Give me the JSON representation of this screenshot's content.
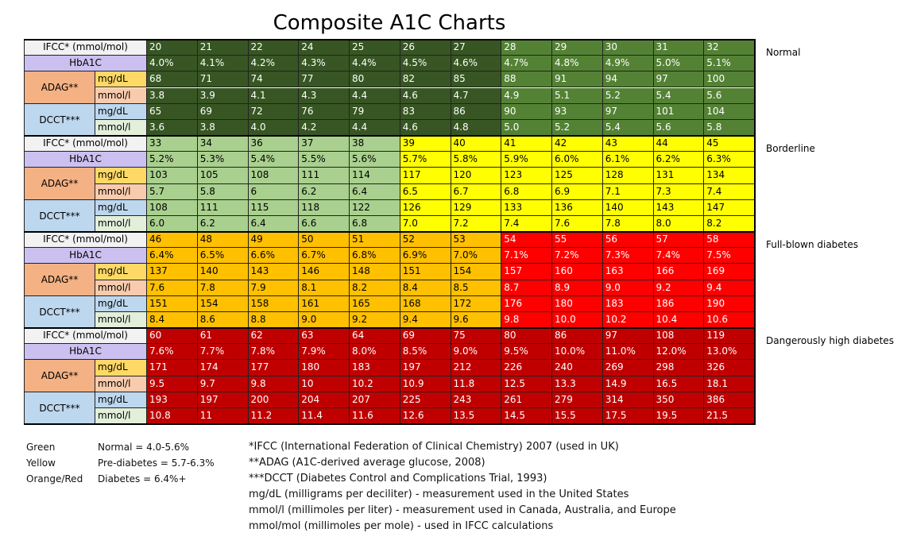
{
  "title": "Composite A1C Charts",
  "row_labels": {
    "ifcc": "IFCC* (mmol/mol)",
    "hba1c": "HbA1C",
    "adag": "ADAG**",
    "dcct": "DCCT***",
    "mgdl": "mg/dL",
    "mmoll": "mmol/l"
  },
  "table": {
    "blocks": [
      {
        "label": "Normal",
        "colors": [
          "#375623",
          "#375623",
          "#375623",
          "#375623",
          "#375623",
          "#375623",
          "#375623",
          "#548235",
          "#548235",
          "#548235",
          "#548235",
          "#548235"
        ],
        "rows": [
          [
            "20",
            "21",
            "22",
            "24",
            "25",
            "26",
            "27",
            "28",
            "29",
            "30",
            "31",
            "32"
          ],
          [
            "4.0%",
            "4.1%",
            "4.2%",
            "4.3%",
            "4.4%",
            "4.5%",
            "4.6%",
            "4.7%",
            "4.8%",
            "4.9%",
            "5.0%",
            "5.1%"
          ],
          [
            "68",
            "71",
            "74",
            "77",
            "80",
            "82",
            "85",
            "88",
            "91",
            "94",
            "97",
            "100"
          ],
          [
            "3.8",
            "3.9",
            "4.1",
            "4.3",
            "4.4",
            "4.6",
            "4.7",
            "4.9",
            "5.1",
            "5.2",
            "5.4",
            "5.6"
          ],
          [
            "65",
            "69",
            "72",
            "76",
            "79",
            "83",
            "86",
            "90",
            "93",
            "97",
            "101",
            "104"
          ],
          [
            "3.6",
            "3.8",
            "4.0",
            "4.2",
            "4.4",
            "4.6",
            "4.8",
            "5.0",
            "5.2",
            "5.4",
            "5.6",
            "5.8"
          ]
        ]
      },
      {
        "label": "Borderline",
        "colors": [
          "#a9d08e",
          "#a9d08e",
          "#a9d08e",
          "#a9d08e",
          "#a9d08e",
          "#ffff00",
          "#ffff00",
          "#ffff00",
          "#ffff00",
          "#ffff00",
          "#ffff00",
          "#ffff00"
        ],
        "rows": [
          [
            "33",
            "34",
            "36",
            "37",
            "38",
            "39",
            "40",
            "41",
            "42",
            "43",
            "44",
            "45"
          ],
          [
            "5.2%",
            "5.3%",
            "5.4%",
            "5.5%",
            "5.6%",
            "5.7%",
            "5.8%",
            "5.9%",
            "6.0%",
            "6.1%",
            "6.2%",
            "6.3%"
          ],
          [
            "103",
            "105",
            "108",
            "111",
            "114",
            "117",
            "120",
            "123",
            "125",
            "128",
            "131",
            "134"
          ],
          [
            "5.7",
            "5.8",
            "6",
            "6.2",
            "6.4",
            "6.5",
            "6.7",
            "6.8",
            "6.9",
            "7.1",
            "7.3",
            "7.4"
          ],
          [
            "108",
            "111",
            "115",
            "118",
            "122",
            "126",
            "129",
            "133",
            "136",
            "140",
            "143",
            "147"
          ],
          [
            "6.0",
            "6.2",
            "6.4",
            "6.6",
            "6.8",
            "7.0",
            "7.2",
            "7.4",
            "7.6",
            "7.8",
            "8.0",
            "8.2"
          ]
        ]
      },
      {
        "label": "Full-blown diabetes",
        "colors": [
          "#ffc000",
          "#ffc000",
          "#ffc000",
          "#ffc000",
          "#ffc000",
          "#ffc000",
          "#ffc000",
          "#ff0000",
          "#ff0000",
          "#ff0000",
          "#ff0000",
          "#ff0000"
        ],
        "rows": [
          [
            "46",
            "48",
            "49",
            "50",
            "51",
            "52",
            "53",
            "54",
            "55",
            "56",
            "57",
            "58"
          ],
          [
            "6.4%",
            "6.5%",
            "6.6%",
            "6.7%",
            "6.8%",
            "6.9%",
            "7.0%",
            "7.1%",
            "7.2%",
            "7.3%",
            "7.4%",
            "7.5%"
          ],
          [
            "137",
            "140",
            "143",
            "146",
            "148",
            "151",
            "154",
            "157",
            "160",
            "163",
            "166",
            "169"
          ],
          [
            "7.6",
            "7.8",
            "7.9",
            "8.1",
            "8.2",
            "8.4",
            "8.5",
            "8.7",
            "8.9",
            "9.0",
            "9.2",
            "9.4"
          ],
          [
            "151",
            "154",
            "158",
            "161",
            "165",
            "168",
            "172",
            "176",
            "180",
            "183",
            "186",
            "190"
          ],
          [
            "8.4",
            "8.6",
            "8.8",
            "9.0",
            "9.2",
            "9.4",
            "9.6",
            "9.8",
            "10.0",
            "10.2",
            "10.4",
            "10.6"
          ]
        ]
      },
      {
        "label": "Dangerously high diabetes",
        "colors": [
          "#c00000",
          "#c00000",
          "#c00000",
          "#c00000",
          "#c00000",
          "#c00000",
          "#c00000",
          "#c00000",
          "#c00000",
          "#c00000",
          "#c00000",
          "#c00000"
        ],
        "rows": [
          [
            "60",
            "61",
            "62",
            "63",
            "64",
            "69",
            "75",
            "80",
            "86",
            "97",
            "108",
            "119"
          ],
          [
            "7.6%",
            "7.7%",
            "7.8%",
            "7.9%",
            "8.0%",
            "8.5%",
            "9.0%",
            "9.5%",
            "10.0%",
            "11.0%",
            "12.0%",
            "13.0%"
          ],
          [
            "171",
            "174",
            "177",
            "180",
            "183",
            "197",
            "212",
            "226",
            "240",
            "269",
            "298",
            "326"
          ],
          [
            "9.5",
            "9.7",
            "9.8",
            "10",
            "10.2",
            "10.9",
            "11.8",
            "12.5",
            "13.3",
            "14.9",
            "16.5",
            "18.1"
          ],
          [
            "193",
            "197",
            "200",
            "204",
            "207",
            "225",
            "243",
            "261",
            "279",
            "314",
            "350",
            "386"
          ],
          [
            "10.8",
            "11",
            "11.2",
            "11.4",
            "11.6",
            "12.6",
            "13.5",
            "14.5",
            "15.5",
            "17.5",
            "19.5",
            "21.5"
          ]
        ]
      }
    ]
  },
  "legend": [
    [
      "Green",
      "Normal = 4.0-5.6%"
    ],
    [
      "Yellow",
      "Pre-diabetes = 5.7-6.3%"
    ],
    [
      "Orange/Red",
      "Diabetes = 6.4%+"
    ]
  ],
  "notes": [
    "*IFCC (International Federation of Clinical Chemistry) 2007 (used in UK)",
    "**ADAG (A1C-derived average glucose, 2008)",
    "***DCCT (Diabetes Control and Complications Trial, 1993)",
    "mg/dL (milligrams per deciliter) - measurement used in the United States",
    "mmol/l (millimoles per liter) - measurement used in Canada, Australia, and Europe",
    "mmol/mol (millimoles per mole) - used in IFCC calculations"
  ]
}
